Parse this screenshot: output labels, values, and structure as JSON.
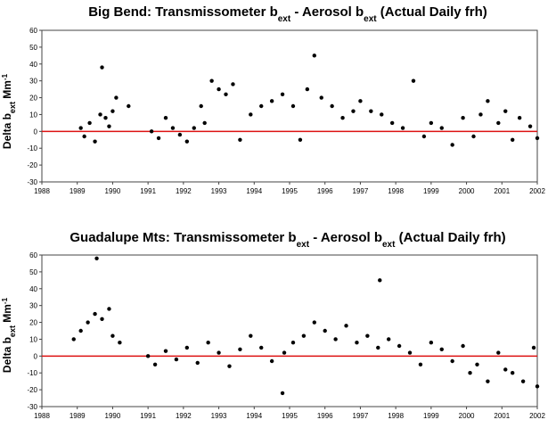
{
  "chart_data": [
    {
      "type": "scatter",
      "title": {
        "main": "Big Bend: Transmissometer b",
        "sub1": "ext",
        "mid": " -  Aerosol b",
        "sub2": "ext",
        "end": " (Actual Daily frh)"
      },
      "ylabel": {
        "main": "Delta b",
        "sub": "ext",
        "unit": " Mm",
        "sup": "-1"
      },
      "xlim": [
        1988,
        2002
      ],
      "ylim": [
        -30,
        60
      ],
      "x_ticks": [
        "1988",
        "1989",
        "1990",
        "1991",
        "1992",
        "1993",
        "1994",
        "1995",
        "1996",
        "1997",
        "1998",
        "1999",
        "2000",
        "2001",
        "2002"
      ],
      "y_ticks": [
        "60",
        "50",
        "40",
        "30",
        "20",
        "10",
        "0",
        "-10",
        "-20",
        "-30"
      ],
      "reference_line": {
        "y": 0,
        "color": "#dd1111"
      },
      "marker_color": "#000000",
      "series_name": "Delta bext",
      "x": [
        1989.1,
        1989.2,
        1989.35,
        1989.5,
        1989.65,
        1989.7,
        1989.8,
        1989.9,
        1990.0,
        1990.1,
        1990.45,
        1991.1,
        1991.3,
        1991.5,
        1991.7,
        1991.9,
        1992.1,
        1992.3,
        1992.5,
        1992.6,
        1992.8,
        1993.0,
        1993.2,
        1993.4,
        1993.6,
        1993.9,
        1994.2,
        1994.5,
        1994.8,
        1995.1,
        1995.3,
        1995.5,
        1995.7,
        1995.9,
        1996.2,
        1996.5,
        1996.8,
        1997.0,
        1997.3,
        1997.6,
        1997.9,
        1998.2,
        1998.5,
        1998.8,
        1999.0,
        1999.3,
        1999.6,
        1999.9,
        2000.2,
        2000.4,
        2000.6,
        2000.9,
        2001.1,
        2001.3,
        2001.5,
        2001.8,
        2002.0
      ],
      "y": [
        2,
        -3,
        5,
        -6,
        10,
        38,
        8,
        3,
        12,
        20,
        15,
        0,
        -4,
        8,
        2,
        -2,
        -6,
        2,
        15,
        5,
        30,
        25,
        22,
        28,
        -5,
        10,
        15,
        18,
        22,
        15,
        -5,
        25,
        45,
        20,
        15,
        8,
        12,
        18,
        12,
        10,
        5,
        2,
        30,
        -3,
        5,
        2,
        -8,
        8,
        -3,
        10,
        18,
        5,
        12,
        -5,
        8,
        3,
        -4
      ]
    },
    {
      "type": "scatter",
      "title": {
        "main": "Guadalupe Mts: Transmissometer b",
        "sub1": "ext",
        "mid": " - Aerosol b",
        "sub2": "ext",
        "end": " (Actual Daily frh)"
      },
      "ylabel": {
        "main": "Delta b",
        "sub": "ext",
        "unit": " Mm",
        "sup": "-1"
      },
      "xlim": [
        1988,
        2002
      ],
      "ylim": [
        -30,
        60
      ],
      "x_ticks": [
        "1988",
        "1989",
        "1990",
        "1991",
        "1992",
        "1993",
        "1994",
        "1995",
        "1996",
        "1997",
        "1998",
        "1999",
        "2000",
        "2001",
        "2002"
      ],
      "y_ticks": [
        "60",
        "50",
        "40",
        "30",
        "20",
        "10",
        "0",
        "-10",
        "-20",
        "-30"
      ],
      "reference_line": {
        "y": 0,
        "color": "#dd1111"
      },
      "marker_color": "#000000",
      "series_name": "Delta bext",
      "x": [
        1988.9,
        1989.1,
        1989.3,
        1989.5,
        1989.55,
        1989.7,
        1989.9,
        1990.0,
        1990.2,
        1991.0,
        1991.2,
        1991.5,
        1991.8,
        1992.1,
        1992.4,
        1992.7,
        1993.0,
        1993.3,
        1993.6,
        1993.9,
        1994.2,
        1994.5,
        1994.8,
        1994.85,
        1995.1,
        1995.4,
        1995.7,
        1996.0,
        1996.3,
        1996.6,
        1996.9,
        1997.2,
        1997.5,
        1997.55,
        1997.8,
        1998.1,
        1998.4,
        1998.7,
        1999.0,
        1999.3,
        1999.6,
        1999.9,
        2000.1,
        2000.3,
        2000.6,
        2000.9,
        2001.1,
        2001.3,
        2001.6,
        2001.9,
        2002.0
      ],
      "y": [
        10,
        15,
        20,
        25,
        58,
        22,
        28,
        12,
        8,
        0,
        -5,
        3,
        -2,
        5,
        -4,
        8,
        2,
        -6,
        4,
        12,
        5,
        -3,
        -22,
        2,
        8,
        12,
        20,
        15,
        10,
        18,
        8,
        12,
        5,
        45,
        10,
        6,
        2,
        -5,
        8,
        4,
        -3,
        6,
        -10,
        -5,
        -15,
        2,
        -8,
        -10,
        -15,
        5,
        -18
      ]
    }
  ]
}
